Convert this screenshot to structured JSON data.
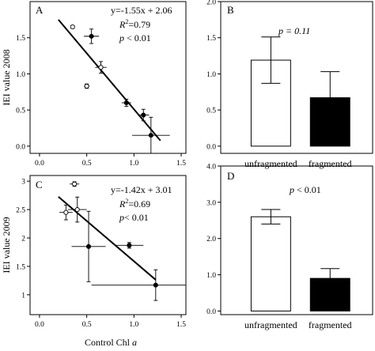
{
  "shared_labels": {
    "y_label_top": "IEI value 2008",
    "y_label_bottom": "IEI value 2009",
    "x_label_main": "Control Chl ",
    "x_label_italic": "a"
  },
  "chart_data": [
    {
      "panel": "A",
      "type": "scatter",
      "xlim": [
        -0.1,
        1.55
      ],
      "ylim": [
        -0.1,
        2.0
      ],
      "x_ticks": [
        "0.0",
        "0.5",
        "1.0",
        "1.5"
      ],
      "y_ticks": [
        "0.0",
        "0.5",
        "1.0",
        "1.5"
      ],
      "grid": false,
      "points": [
        {
          "x": 0.35,
          "y": 1.65,
          "xerr": 0.02,
          "yerr": 0.02,
          "marker": "open"
        },
        {
          "x": 0.55,
          "y": 1.52,
          "xerr": 0.08,
          "yerr": 0.1,
          "marker": "filled"
        },
        {
          "x": 0.65,
          "y": 1.09,
          "xerr": 0.06,
          "yerr": 0.08,
          "marker": "open"
        },
        {
          "x": 0.5,
          "y": 0.83,
          "xerr": 0.03,
          "yerr": 0.03,
          "marker": "open"
        },
        {
          "x": 0.92,
          "y": 0.6,
          "xerr": 0.05,
          "yerr": 0.05,
          "marker": "filled"
        },
        {
          "x": 1.1,
          "y": 0.43,
          "xerr": 0.06,
          "yerr": 0.08,
          "marker": "filled"
        },
        {
          "x": 1.18,
          "y": 0.15,
          "xerr": 0.2,
          "yerr": 0.25,
          "marker": "filled"
        }
      ],
      "fit": {
        "slope": -1.55,
        "intercept": 2.06,
        "x_range": [
          0.2,
          1.28
        ]
      },
      "annotations": {
        "equation": "y=-1.55x + 2.06",
        "r2_prefix": "R",
        "r2_sup": "2",
        "r2_value": "=0.79",
        "p_var": "p",
        "p_value": " < 0.01"
      }
    },
    {
      "panel": "B",
      "type": "bar",
      "categories": [
        "unfragmented",
        "fragmented"
      ],
      "values": [
        1.19,
        0.67
      ],
      "errors": [
        0.32,
        0.36
      ],
      "bar_colors": [
        "#ffffff",
        "#000000"
      ],
      "ylim": [
        -0.1,
        2.0
      ],
      "y_ticks": [
        "0.0",
        "0.5",
        "1.0",
        "1.5",
        "2.0"
      ],
      "annotation": "p = 0.11"
    },
    {
      "panel": "C",
      "type": "scatter",
      "xlim": [
        -0.1,
        1.55
      ],
      "ylim": [
        0.65,
        3.1
      ],
      "x_ticks": [
        "0.0",
        "0.5",
        "1.0",
        "1.5"
      ],
      "y_ticks": [
        "1",
        "1.5",
        "2",
        "2.5",
        "3"
      ],
      "grid": false,
      "points": [
        {
          "x": 0.37,
          "y": 2.95,
          "xerr": 0.05,
          "yerr": 0.04,
          "marker": "open"
        },
        {
          "x": 0.28,
          "y": 2.45,
          "xerr": 0.07,
          "yerr": 0.13,
          "marker": "open"
        },
        {
          "x": 0.4,
          "y": 2.5,
          "xerr": 0.1,
          "yerr": 0.22,
          "marker": "open"
        },
        {
          "x": 0.52,
          "y": 1.85,
          "xerr": 0.18,
          "yerr": 0.62,
          "marker": "filled"
        },
        {
          "x": 0.95,
          "y": 1.87,
          "xerr": 0.15,
          "yerr": 0.05,
          "marker": "filled"
        },
        {
          "x": 1.23,
          "y": 1.17,
          "xerr": 0.68,
          "yerr": 0.27,
          "marker": "filled"
        }
      ],
      "fit": {
        "slope": -1.42,
        "intercept": 3.01,
        "x_range": [
          0.2,
          1.23
        ]
      },
      "annotations": {
        "equation": "y=-1.42x + 3.01",
        "r2_prefix": "R",
        "r2_sup": "2",
        "r2_value": "=0.69",
        "p_var": "p",
        "p_value": "< 0.01"
      }
    },
    {
      "panel": "D",
      "type": "bar",
      "categories": [
        "unfragmented",
        "fragmented"
      ],
      "values": [
        2.6,
        0.9
      ],
      "errors": [
        0.2,
        0.27
      ],
      "bar_colors": [
        "#ffffff",
        "#000000"
      ],
      "ylim": [
        -0.1,
        4.0
      ],
      "y_ticks": [
        "0.0",
        "1.0",
        "2.0",
        "3.0",
        "4.0"
      ],
      "annotation_var": "p",
      "annotation_value": " < 0.01"
    }
  ]
}
